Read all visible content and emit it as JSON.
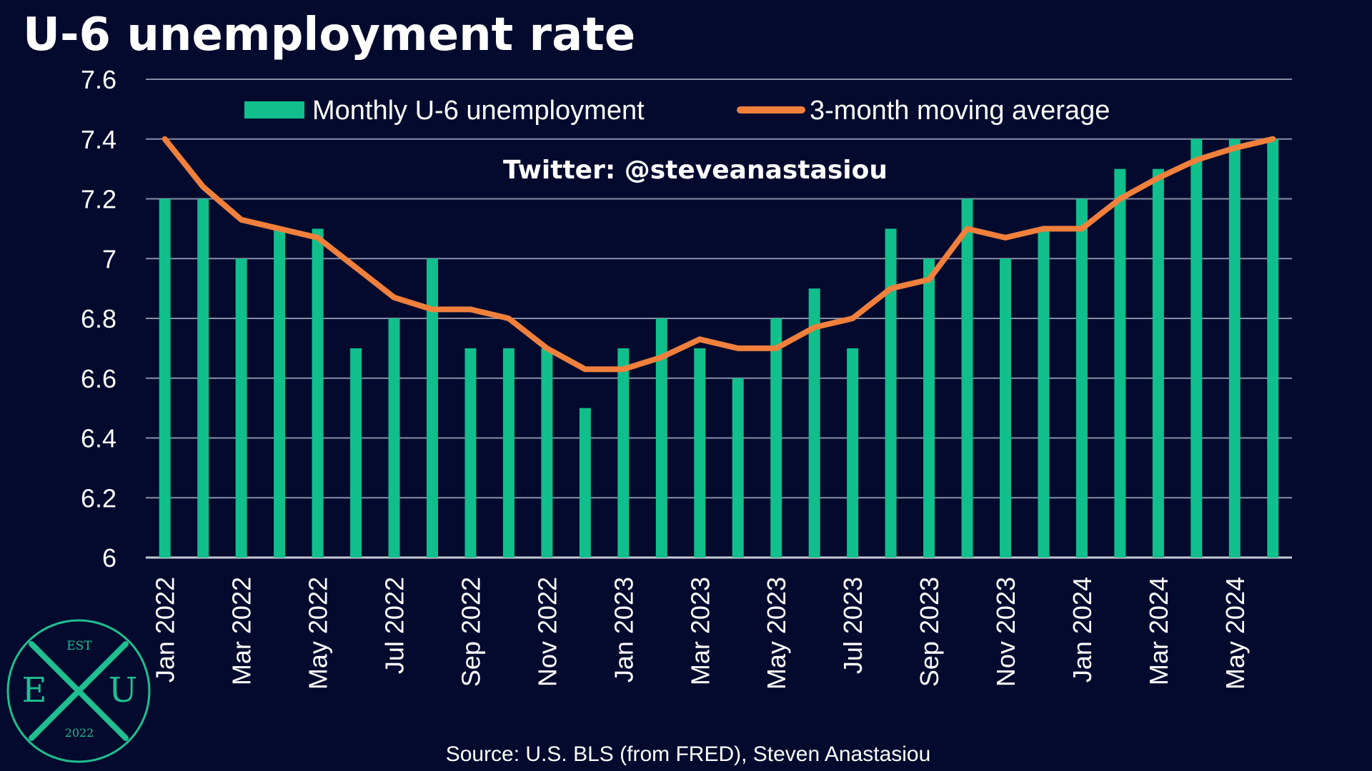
{
  "colors": {
    "background": "#030a2e",
    "bar": "#10bf8c",
    "line": "#f0803c",
    "grid": "#8a8ea6",
    "logo": "#1fbf8f"
  },
  "logo": {
    "top": "EST",
    "left": "E",
    "center": "X",
    "right": "U",
    "bottom": "2022"
  },
  "chart_data": {
    "type": "bar",
    "title": "U-6 unemployment rate",
    "annotation": "Twitter: @steveanastasiou",
    "source": "Source: U.S. BLS (from FRED), Steven Anastasiou",
    "ylim": [
      6,
      7.6
    ],
    "yticks": [
      "6",
      "6.2",
      "6.4",
      "6.6",
      "6.8",
      "7",
      "7.2",
      "7.4",
      "7.6"
    ],
    "grid": true,
    "legend_position": "top",
    "categories": [
      "Jan 2022",
      "Feb 2022",
      "Mar 2022",
      "Apr 2022",
      "May 2022",
      "Jun 2022",
      "Jul 2022",
      "Aug 2022",
      "Sep 2022",
      "Oct 2022",
      "Nov 2022",
      "Dec 2022",
      "Jan 2023",
      "Feb 2023",
      "Mar 2023",
      "Apr 2023",
      "May 2023",
      "Jun 2023",
      "Jul 2023",
      "Aug 2023",
      "Sep 2023",
      "Oct 2023",
      "Nov 2023",
      "Dec 2023",
      "Jan 2024",
      "Feb 2024",
      "Mar 2024",
      "Apr 2024",
      "May 2024",
      "Jun 2024"
    ],
    "tick_labels": [
      "Jan 2022",
      "",
      "Mar 2022",
      "",
      "May 2022",
      "",
      "Jul 2022",
      "",
      "Sep 2022",
      "",
      "Nov 2022",
      "",
      "Jan 2023",
      "",
      "Mar 2023",
      "",
      "May 2023",
      "",
      "Jul 2023",
      "",
      "Sep 2023",
      "",
      "Nov 2023",
      "",
      "Jan 2024",
      "",
      "Mar 2024",
      "",
      "May 2024",
      ""
    ],
    "series": [
      {
        "name": "Monthly U-6 unemployment",
        "type": "bar",
        "values": [
          7.2,
          7.2,
          7.0,
          7.1,
          7.1,
          6.7,
          6.8,
          7.0,
          6.7,
          6.7,
          6.7,
          6.5,
          6.7,
          6.8,
          6.7,
          6.6,
          6.8,
          6.9,
          6.7,
          7.1,
          7.0,
          7.2,
          7.0,
          7.1,
          7.2,
          7.3,
          7.3,
          7.4,
          7.4,
          7.4
        ]
      },
      {
        "name": "3-month moving average",
        "type": "line",
        "values": [
          7.4,
          7.24,
          7.13,
          7.1,
          7.07,
          6.97,
          6.87,
          6.83,
          6.83,
          6.8,
          6.7,
          6.63,
          6.63,
          6.67,
          6.73,
          6.7,
          6.7,
          6.77,
          6.8,
          6.9,
          6.93,
          7.1,
          7.07,
          7.1,
          7.1,
          7.2,
          7.27,
          7.33,
          7.37,
          7.4
        ]
      }
    ]
  }
}
